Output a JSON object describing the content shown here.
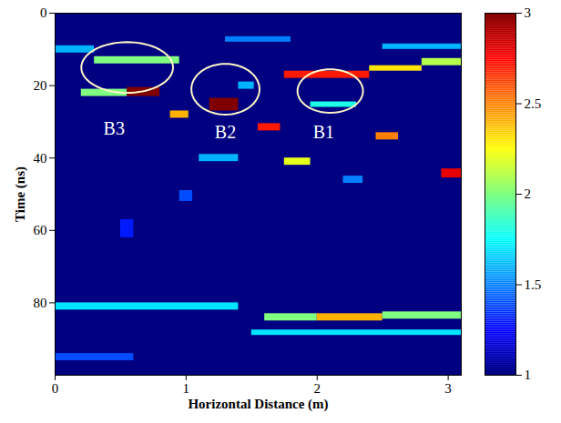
{
  "chart_data": {
    "type": "heatmap",
    "x_label": "Horizontal Distance (m)",
    "y_label": "Time (ns)",
    "xlim": [
      0,
      3.1
    ],
    "xticks": [
      0,
      1,
      2,
      3
    ],
    "ylim": [
      0,
      100
    ],
    "yticks": [
      0,
      20,
      40,
      60,
      80
    ],
    "colorbar": {
      "lim": [
        1,
        3
      ],
      "ticks": [
        1,
        1.5,
        2,
        2.5,
        3
      ]
    },
    "cells": [
      {
        "x1": 0,
        "x2": 3.1,
        "y1": 0,
        "y2": 100,
        "value": 1
      },
      {
        "x1": 0,
        "x2": 0.3,
        "y1": 9,
        "y2": 11,
        "value": 1.6
      },
      {
        "x1": 0.3,
        "x2": 0.95,
        "y1": 12,
        "y2": 14,
        "value": 2
      },
      {
        "x1": 1.3,
        "x2": 1.8,
        "y1": 6.5,
        "y2": 8,
        "value": 1.5
      },
      {
        "x1": 0.2,
        "x2": 0.55,
        "y1": 21,
        "y2": 23,
        "value": 2
      },
      {
        "x1": 0.55,
        "x2": 0.8,
        "y1": 20.5,
        "y2": 23,
        "value": 3
      },
      {
        "x1": 0.88,
        "x2": 1.02,
        "y1": 27,
        "y2": 29,
        "value": 2.4
      },
      {
        "x1": 1.18,
        "x2": 1.4,
        "y1": 23.5,
        "y2": 27,
        "value": 3
      },
      {
        "x1": 1.4,
        "x2": 1.52,
        "y1": 19,
        "y2": 21,
        "value": 1.6
      },
      {
        "x1": 1.55,
        "x2": 1.72,
        "y1": 30.5,
        "y2": 32.5,
        "value": 2.7
      },
      {
        "x1": 1.75,
        "x2": 2.4,
        "y1": 16,
        "y2": 18,
        "value": 2.7
      },
      {
        "x1": 2.4,
        "x2": 2.8,
        "y1": 14.5,
        "y2": 16,
        "value": 2.3
      },
      {
        "x1": 2.8,
        "x2": 3.1,
        "y1": 12.5,
        "y2": 14.5,
        "value": 2.1
      },
      {
        "x1": 2.5,
        "x2": 3.1,
        "y1": 8.5,
        "y2": 10,
        "value": 1.6
      },
      {
        "x1": 1.95,
        "x2": 2.3,
        "y1": 24.5,
        "y2": 26,
        "value": 1.8
      },
      {
        "x1": 2.45,
        "x2": 2.62,
        "y1": 33,
        "y2": 35,
        "value": 2.5
      },
      {
        "x1": 1.75,
        "x2": 1.95,
        "y1": 40,
        "y2": 42,
        "value": 2.2
      },
      {
        "x1": 1.1,
        "x2": 1.4,
        "y1": 39,
        "y2": 41,
        "value": 1.6
      },
      {
        "x1": 2.95,
        "x2": 3.1,
        "y1": 43,
        "y2": 45.5,
        "value": 2.8
      },
      {
        "x1": 2.2,
        "x2": 2.35,
        "y1": 45,
        "y2": 47,
        "value": 1.5
      },
      {
        "x1": 0.95,
        "x2": 1.05,
        "y1": 49,
        "y2": 52,
        "value": 1.4
      },
      {
        "x1": 0.5,
        "x2": 0.6,
        "y1": 57,
        "y2": 62,
        "value": 1.3
      },
      {
        "x1": 0,
        "x2": 1.4,
        "y1": 80,
        "y2": 82,
        "value": 1.7
      },
      {
        "x1": 1.6,
        "x2": 2.0,
        "y1": 83,
        "y2": 85,
        "value": 2
      },
      {
        "x1": 2.0,
        "x2": 2.5,
        "y1": 83,
        "y2": 85,
        "value": 2.4
      },
      {
        "x1": 2.5,
        "x2": 3.1,
        "y1": 82.5,
        "y2": 84.5,
        "value": 2
      },
      {
        "x1": 1.5,
        "x2": 3.1,
        "y1": 87.5,
        "y2": 89,
        "value": 1.7
      },
      {
        "x1": 0,
        "x2": 0.6,
        "y1": 94,
        "y2": 96,
        "value": 1.4
      }
    ],
    "annotations": [
      {
        "label": "B3",
        "x": 0.45,
        "y": 32,
        "cx": 0.55,
        "cy": 15,
        "rx": 0.35,
        "ry": 7
      },
      {
        "label": "B2",
        "x": 1.3,
        "y": 33,
        "cx": 1.3,
        "cy": 21,
        "rx": 0.26,
        "ry": 7
      },
      {
        "label": "B1",
        "x": 2.05,
        "y": 33,
        "cx": 2.1,
        "cy": 21.5,
        "rx": 0.25,
        "ry": 6
      }
    ]
  }
}
